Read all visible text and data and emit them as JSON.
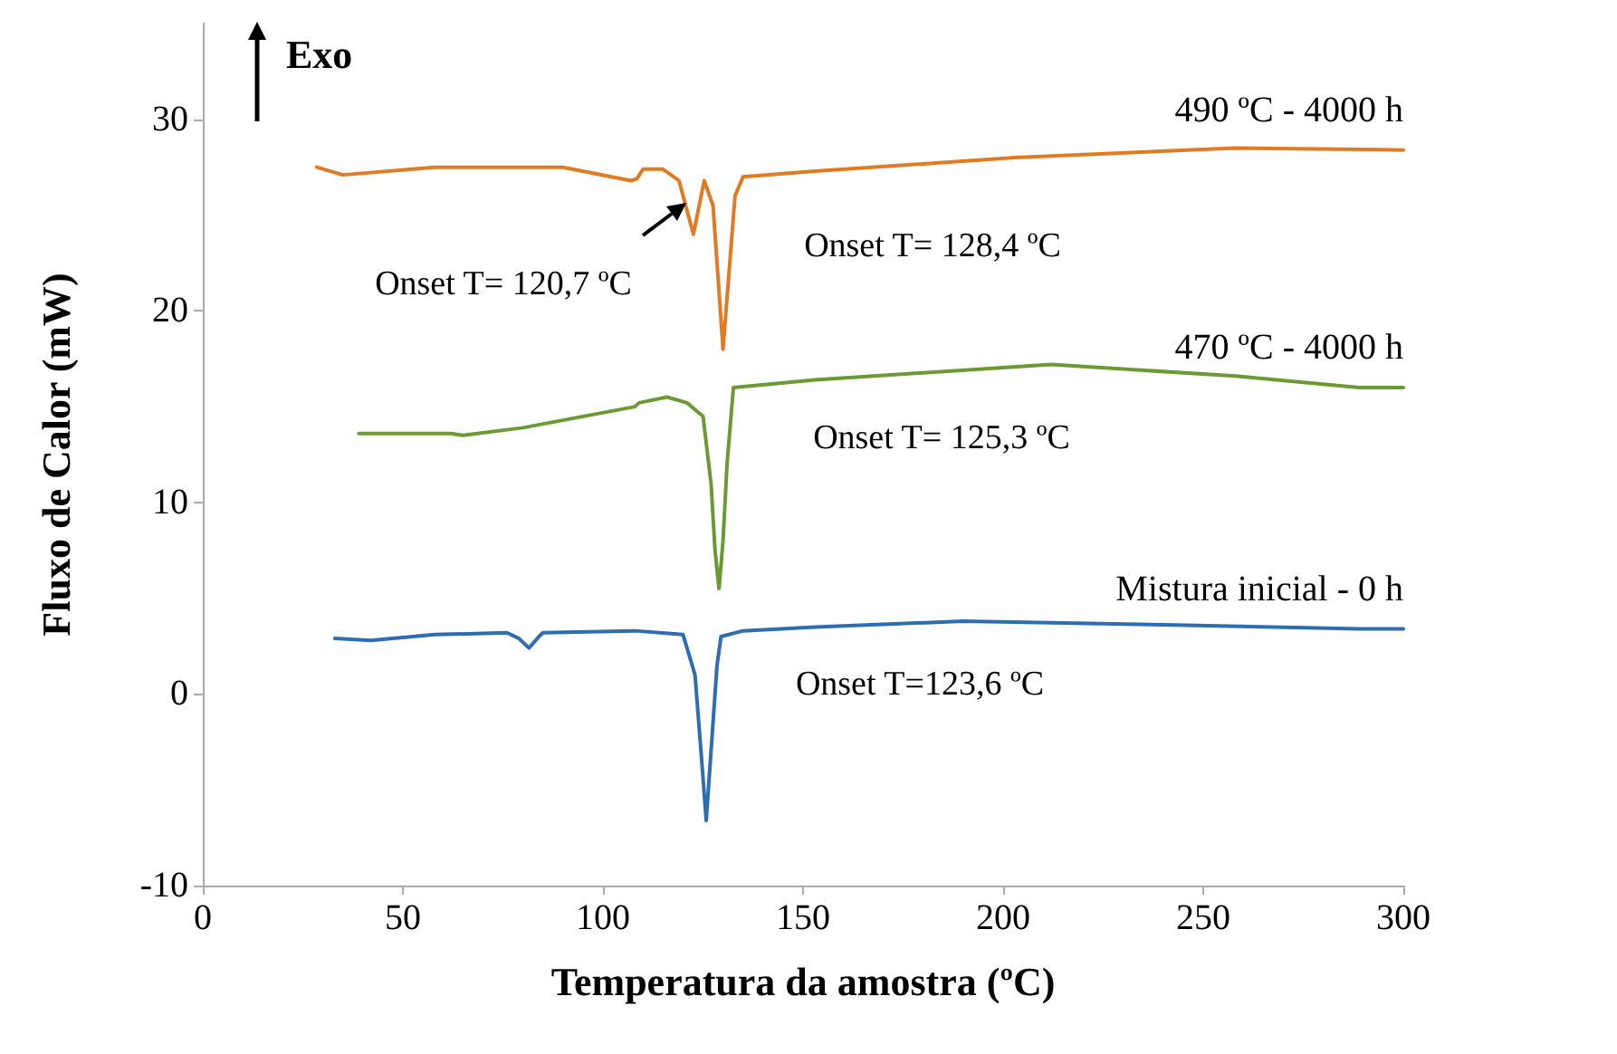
{
  "chart_data": {
    "type": "line",
    "xlabel": "Temperatura da amostra (ºC)",
    "ylabel": "Fluxo de Calor (mW)",
    "xlim": [
      0,
      300
    ],
    "xticks": [
      0,
      50,
      100,
      150,
      200,
      250,
      300
    ],
    "ylim": [
      -10,
      35
    ],
    "yticks": [
      -10,
      0,
      10,
      20,
      30
    ],
    "grid": false,
    "legend": false,
    "marker": "none",
    "line_style": "solid",
    "annotations": [
      "Exo",
      "Onset T= 120,7 ºC",
      "Onset T= 128,4 ºC",
      "Onset T= 125,3 ºC",
      "Onset T=123,6 ºC"
    ],
    "series": [
      {
        "name": "490 ºC - 4000 h",
        "color": "#e07b24",
        "x": [
          28.5,
          35,
          58,
          90,
          107,
          108.5,
          110,
          115,
          119,
          122.6,
          125.3,
          127.5,
          129,
          130,
          131.5,
          133,
          135,
          153,
          203,
          258,
          300
        ],
        "values": [
          27.5,
          27.1,
          27.5,
          27.5,
          26.8,
          26.9,
          27.4,
          27.4,
          26.8,
          24.0,
          26.8,
          25.5,
          21.0,
          18.0,
          22.0,
          26.0,
          27.0,
          27.3,
          28.0,
          28.5,
          28.4
        ]
      },
      {
        "name": "470 ºC - 4000 h",
        "color": "#6b9a34",
        "x": [
          39,
          62,
          65,
          80,
          108,
          109,
          116,
          121,
          125,
          127,
          128,
          129,
          130,
          131,
          132.6,
          153,
          212,
          258,
          289,
          300
        ],
        "values": [
          13.6,
          13.6,
          13.5,
          13.9,
          15.0,
          15.2,
          15.5,
          15.2,
          14.5,
          11.0,
          7.5,
          5.5,
          8.0,
          12.0,
          16.0,
          16.4,
          17.2,
          16.6,
          16.0,
          16.0
        ]
      },
      {
        "name": "Mistura inicial - 0 h",
        "color": "#2e6db0",
        "x": [
          33,
          42,
          58,
          76,
          79,
          81.5,
          84,
          85,
          108,
          120,
          123,
          124.5,
          125.8,
          127,
          128.5,
          129.5,
          135,
          153,
          190,
          243,
          289,
          300
        ],
        "values": [
          2.9,
          2.8,
          3.1,
          3.2,
          2.9,
          2.4,
          3.0,
          3.2,
          3.3,
          3.1,
          1.0,
          -3.0,
          -6.6,
          -3.0,
          1.5,
          3.0,
          3.3,
          3.5,
          3.8,
          3.6,
          3.4,
          3.4
        ]
      }
    ]
  }
}
